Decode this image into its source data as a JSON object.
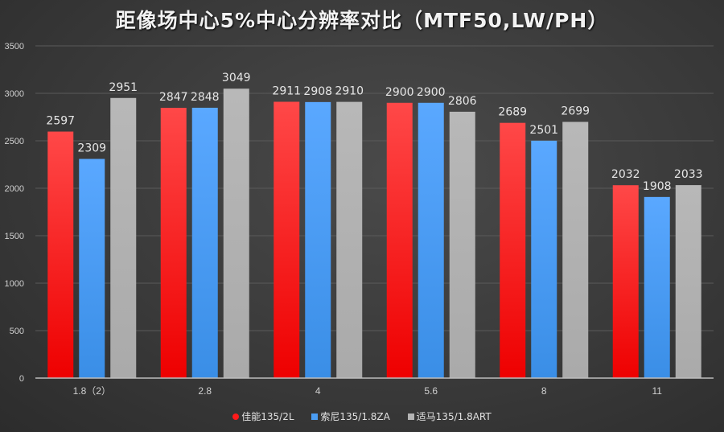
{
  "chart_data": {
    "type": "bar",
    "title": "距像场中心5%中心分辨率对比（MTF50,LW/PH）",
    "xlabel": "",
    "ylabel": "",
    "ylim": [
      0,
      3500
    ],
    "yticks": [
      0,
      500,
      1000,
      1500,
      2000,
      2500,
      3000,
      3500
    ],
    "grid": true,
    "legend_position": "bottom",
    "categories": [
      "1.8（2）",
      "2.8",
      "4",
      "5.6",
      "8",
      "11"
    ],
    "series": [
      {
        "name": "佳能135/2L",
        "color": "#ff1a1a",
        "values": [
          2597,
          2847,
          2911,
          2900,
          2689,
          2032
        ]
      },
      {
        "name": "索尼135/1.8ZA",
        "color": "#4a9cf2",
        "values": [
          2309,
          2848,
          2908,
          2900,
          2501,
          1908
        ]
      },
      {
        "name": "适马135/1.8ART",
        "color": "#b4b4b4",
        "values": [
          2951,
          3049,
          2910,
          2806,
          2699,
          2033
        ]
      }
    ]
  }
}
